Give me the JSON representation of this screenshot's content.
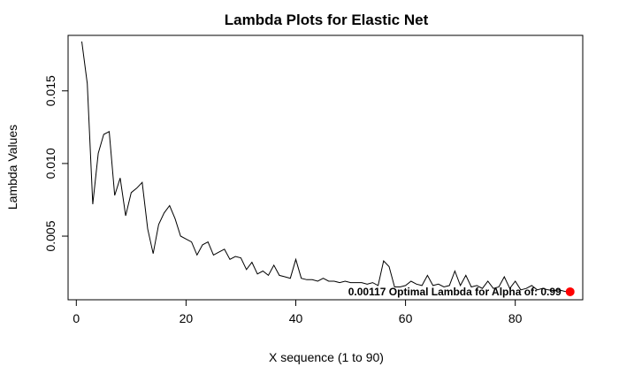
{
  "chart_data": {
    "type": "line",
    "title": "Lambda Plots for Elastic Net",
    "xlabel": "X sequence (1 to 90)",
    "ylabel": "Lambda Values",
    "xlim": [
      -1.5,
      92.3
    ],
    "ylim": [
      0.00062,
      0.01882
    ],
    "xticks": [
      0,
      20,
      40,
      60,
      80
    ],
    "yticks": [
      0.005,
      0.01,
      0.015
    ],
    "xtick_labels": [
      "0",
      "20",
      "40",
      "60",
      "80"
    ],
    "ytick_labels": [
      "0.005",
      "0.010",
      "0.015"
    ],
    "grid": false,
    "legend": "none",
    "series": [
      {
        "color": "#000000",
        "x": [
          1,
          2,
          3,
          4,
          5,
          6,
          7,
          8,
          9,
          10,
          11,
          12,
          13,
          14,
          15,
          16,
          17,
          18,
          19,
          20,
          21,
          22,
          23,
          24,
          25,
          26,
          27,
          28,
          29,
          30,
          31,
          32,
          33,
          34,
          35,
          36,
          37,
          38,
          39,
          40,
          41,
          42,
          43,
          44,
          45,
          46,
          47,
          48,
          49,
          50,
          51,
          52,
          53,
          54,
          55,
          56,
          57,
          58,
          59,
          60,
          61,
          62,
          63,
          64,
          65,
          66,
          67,
          68,
          69,
          70,
          71,
          72,
          73,
          74,
          75,
          76,
          77,
          78,
          79,
          80,
          81,
          82,
          83,
          84,
          85,
          86,
          87,
          88,
          89,
          90
        ],
        "y": [
          0.0184,
          0.0155,
          0.0072,
          0.0107,
          0.012,
          0.0122,
          0.0078,
          0.009,
          0.0064,
          0.008,
          0.0083,
          0.0087,
          0.0055,
          0.0038,
          0.0058,
          0.0066,
          0.0071,
          0.0062,
          0.005,
          0.0048,
          0.0046,
          0.0037,
          0.0044,
          0.0046,
          0.0037,
          0.0039,
          0.0041,
          0.0034,
          0.0036,
          0.0035,
          0.0027,
          0.0032,
          0.0024,
          0.0026,
          0.0023,
          0.003,
          0.0023,
          0.0022,
          0.0021,
          0.0034,
          0.0021,
          0.002,
          0.002,
          0.0019,
          0.0021,
          0.0019,
          0.0019,
          0.0018,
          0.0019,
          0.0018,
          0.0018,
          0.0018,
          0.0017,
          0.0018,
          0.0016,
          0.0033,
          0.0029,
          0.0015,
          0.0015,
          0.0016,
          0.0019,
          0.0017,
          0.0016,
          0.0023,
          0.0016,
          0.0017,
          0.0015,
          0.0016,
          0.0026,
          0.0016,
          0.0023,
          0.0015,
          0.0016,
          0.0014,
          0.0019,
          0.0014,
          0.0015,
          0.0022,
          0.0014,
          0.0019,
          0.0013,
          0.0014,
          0.0016,
          0.0013,
          0.0014,
          0.0013,
          0.00125,
          0.0013,
          0.0012,
          0.00117
        ]
      }
    ],
    "optimal_point": {
      "x": 90,
      "y": 0.00117,
      "color": "#ff0000"
    },
    "annotation": "0.00117 Optimal Lambda for Alpha of: 0.99"
  }
}
